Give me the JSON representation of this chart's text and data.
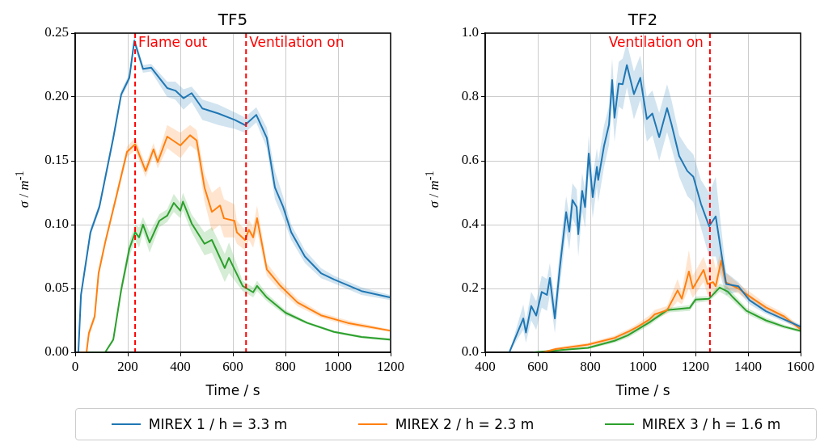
{
  "chart_data": [
    {
      "type": "line",
      "title": "TF5",
      "xlabel": "Time / s",
      "ylabel": "σ / m$^{-1}$",
      "xlim": [
        0,
        1200
      ],
      "xticks": [
        0,
        200,
        400,
        600,
        800,
        1000,
        1200
      ],
      "ylim": [
        0,
        0.25
      ],
      "yticks": [
        {
          "value": 0,
          "label": "0.00"
        },
        {
          "value": 0.05,
          "label": "0.05"
        },
        {
          "value": 0.1,
          "label": "0.10"
        },
        {
          "value": 0.15,
          "label": "0.15"
        },
        {
          "value": 0.2,
          "label": "0.20"
        },
        {
          "value": 0.25,
          "label": "0.25"
        }
      ],
      "grid": true,
      "marker": "none",
      "line_style": "solid",
      "ref_lines": [
        {
          "axis": "x",
          "value": 228,
          "label": "Flame out",
          "color": "#ff0000",
          "line_style": "dashed"
        },
        {
          "axis": "x",
          "value": 650,
          "label": "Ventilation on",
          "color": "#ff0000",
          "line_style": "dashed"
        }
      ],
      "series": [
        {
          "color": "#1f77b4",
          "x": [
            0,
            12,
            22,
            58,
            92,
            145,
            175,
            206,
            225,
            258,
            289,
            350,
            381,
            412,
            443,
            484,
            545,
            607,
            646,
            689,
            729,
            760,
            791,
            822,
            874,
            935,
            985,
            1089,
            1197
          ],
          "values": [
            0,
            0,
            0.045,
            0.094,
            0.114,
            0.168,
            0.202,
            0.215,
            0.244,
            0.222,
            0.223,
            0.207,
            0.205,
            0.199,
            0.203,
            0.191,
            0.187,
            0.182,
            0.178,
            0.186,
            0.168,
            0.129,
            0.114,
            0.094,
            0.075,
            0.062,
            0.057,
            0.048,
            0.043
          ],
          "lower": [
            0,
            0,
            0.042,
            0.091,
            0.111,
            0.165,
            0.199,
            0.212,
            0.24,
            0.219,
            0.22,
            0.2,
            0.198,
            0.19,
            0.196,
            0.182,
            0.178,
            0.175,
            0.172,
            0.18,
            0.16,
            0.12,
            0.105,
            0.088,
            0.07,
            0.058,
            0.054,
            0.045,
            0.041
          ],
          "upper": [
            0,
            0,
            0.048,
            0.097,
            0.117,
            0.171,
            0.205,
            0.218,
            0.248,
            0.225,
            0.226,
            0.212,
            0.212,
            0.206,
            0.208,
            0.198,
            0.194,
            0.188,
            0.184,
            0.192,
            0.176,
            0.142,
            0.122,
            0.1,
            0.08,
            0.066,
            0.06,
            0.051,
            0.045
          ]
        },
        {
          "color": "#ff7f0e",
          "x": [
            0,
            43,
            52,
            74,
            89,
            114,
            154,
            197,
            228,
            268,
            298,
            314,
            350,
            400,
            437,
            462,
            492,
            520,
            551,
            566,
            606,
            615,
            646,
            661,
            677,
            692,
            729,
            781,
            846,
            935,
            1037,
            1197
          ],
          "values": [
            0,
            0,
            0.015,
            0.028,
            0.062,
            0.086,
            0.12,
            0.157,
            0.163,
            0.142,
            0.159,
            0.149,
            0.169,
            0.162,
            0.17,
            0.166,
            0.129,
            0.11,
            0.115,
            0.105,
            0.103,
            0.094,
            0.088,
            0.096,
            0.09,
            0.105,
            0.065,
            0.052,
            0.039,
            0.029,
            0.023,
            0.017
          ],
          "lower": [
            0,
            0,
            0.012,
            0.025,
            0.059,
            0.083,
            0.117,
            0.153,
            0.158,
            0.137,
            0.154,
            0.144,
            0.16,
            0.152,
            0.162,
            0.158,
            0.118,
            0.095,
            0.1,
            0.09,
            0.09,
            0.085,
            0.08,
            0.088,
            0.082,
            0.095,
            0.06,
            0.048,
            0.036,
            0.027,
            0.021,
            0.016
          ],
          "upper": [
            0,
            0,
            0.018,
            0.031,
            0.065,
            0.089,
            0.123,
            0.161,
            0.168,
            0.147,
            0.164,
            0.154,
            0.178,
            0.172,
            0.178,
            0.174,
            0.14,
            0.125,
            0.13,
            0.12,
            0.116,
            0.103,
            0.096,
            0.104,
            0.098,
            0.115,
            0.07,
            0.056,
            0.042,
            0.031,
            0.025,
            0.018
          ]
        },
        {
          "color": "#2ca02c",
          "x": [
            0,
            114,
            145,
            175,
            206,
            228,
            243,
            258,
            283,
            320,
            350,
            375,
            400,
            410,
            443,
            492,
            520,
            569,
            585,
            637,
            677,
            692,
            729,
            800,
            883,
            985,
            1089,
            1197
          ],
          "values": [
            0,
            0,
            0.01,
            0.049,
            0.081,
            0.094,
            0.09,
            0.1,
            0.086,
            0.103,
            0.107,
            0.117,
            0.111,
            0.118,
            0.101,
            0.085,
            0.088,
            0.066,
            0.074,
            0.052,
            0.047,
            0.052,
            0.043,
            0.031,
            0.023,
            0.016,
            0.012,
            0.01
          ],
          "lower": [
            0,
            0,
            0.008,
            0.045,
            0.075,
            0.088,
            0.082,
            0.094,
            0.078,
            0.098,
            0.102,
            0.11,
            0.105,
            0.111,
            0.094,
            0.076,
            0.078,
            0.055,
            0.062,
            0.048,
            0.043,
            0.048,
            0.04,
            0.029,
            0.022,
            0.015,
            0.011,
            0.009
          ],
          "upper": [
            0,
            0,
            0.012,
            0.053,
            0.087,
            0.1,
            0.098,
            0.106,
            0.094,
            0.108,
            0.112,
            0.124,
            0.117,
            0.125,
            0.108,
            0.094,
            0.098,
            0.077,
            0.086,
            0.056,
            0.051,
            0.056,
            0.046,
            0.033,
            0.024,
            0.017,
            0.013,
            0.011
          ]
        }
      ]
    },
    {
      "type": "line",
      "title": "TF2",
      "xlabel": "Time / s",
      "ylabel": "σ / m$^{-1}$",
      "xlim": [
        400,
        1600
      ],
      "xticks": [
        400,
        600,
        800,
        1000,
        1200,
        1400,
        1600
      ],
      "ylim": [
        0,
        1
      ],
      "yticks": [
        {
          "value": 0,
          "label": "0.0"
        },
        {
          "value": 0.2,
          "label": "0.2"
        },
        {
          "value": 0.4,
          "label": "0.4"
        },
        {
          "value": 0.6,
          "label": "0.6"
        },
        {
          "value": 0.8,
          "label": "0.8"
        },
        {
          "value": 1,
          "label": "1.0"
        }
      ],
      "grid": true,
      "legend": "bottom",
      "marker": "none",
      "line_style": "solid",
      "ref_lines": [
        {
          "axis": "x",
          "value": 1255,
          "label": "Ventilation on",
          "color": "#ff0000",
          "line_style": "dashed"
        }
      ],
      "series": [
        {
          "name": "MIREX 1 / h = 3.3 m",
          "color": "#1f77b4",
          "x": [
            492,
            545,
            555,
            575,
            594,
            615,
            635,
            646,
            665,
            683,
            708,
            720,
            732,
            748,
            754,
            769,
            780,
            794,
            809,
            825,
            830,
            852,
            871,
            883,
            892,
            908,
            923,
            939,
            966,
            990,
            1015,
            1036,
            1062,
            1092,
            1109,
            1138,
            1169,
            1192,
            1221,
            1252,
            1277,
            1302,
            1317,
            1363,
            1406,
            1468,
            1538,
            1600
          ],
          "values": [
            0,
            0.106,
            0.062,
            0.145,
            0.115,
            0.189,
            0.18,
            0.233,
            0.106,
            0.258,
            0.439,
            0.378,
            0.477,
            0.455,
            0.37,
            0.506,
            0.455,
            0.623,
            0.486,
            0.581,
            0.54,
            0.646,
            0.713,
            0.853,
            0.735,
            0.842,
            0.84,
            0.9,
            0.809,
            0.86,
            0.731,
            0.748,
            0.674,
            0.765,
            0.714,
            0.615,
            0.568,
            0.55,
            0.465,
            0.395,
            0.426,
            0.292,
            0.214,
            0.207,
            0.163,
            0.129,
            0.103,
            0.08
          ],
          "lower": [
            0,
            0.07,
            0.03,
            0.1,
            0.07,
            0.14,
            0.13,
            0.18,
            0.06,
            0.2,
            0.38,
            0.32,
            0.42,
            0.39,
            0.3,
            0.44,
            0.39,
            0.56,
            0.42,
            0.52,
            0.47,
            0.58,
            0.65,
            0.78,
            0.66,
            0.77,
            0.76,
            0.83,
            0.73,
            0.79,
            0.66,
            0.68,
            0.6,
            0.69,
            0.64,
            0.55,
            0.49,
            0.47,
            0.39,
            0.3,
            0.3,
            0.22,
            0.18,
            0.19,
            0.15,
            0.12,
            0.095,
            0.074
          ],
          "upper": [
            0,
            0.15,
            0.1,
            0.19,
            0.16,
            0.24,
            0.23,
            0.28,
            0.16,
            0.31,
            0.49,
            0.43,
            0.53,
            0.51,
            0.43,
            0.56,
            0.51,
            0.68,
            0.55,
            0.64,
            0.6,
            0.71,
            0.77,
            0.92,
            0.8,
            0.91,
            0.92,
            0.97,
            0.88,
            0.93,
            0.8,
            0.82,
            0.75,
            0.84,
            0.79,
            0.68,
            0.64,
            0.62,
            0.54,
            0.5,
            0.55,
            0.36,
            0.25,
            0.22,
            0.18,
            0.14,
            0.11,
            0.087
          ]
        },
        {
          "name": "MIREX 2 / h = 2.3 m",
          "color": "#ff7f0e",
          "x": [
            620,
            668,
            791,
            892,
            929,
            948,
            980,
            1025,
            1045,
            1092,
            1132,
            1148,
            1175,
            1190,
            1231,
            1246,
            1267,
            1277,
            1298,
            1314,
            1363,
            1406,
            1468,
            1538,
            1600
          ],
          "values": [
            0,
            0.01,
            0.024,
            0.045,
            0.059,
            0.066,
            0.08,
            0.103,
            0.119,
            0.132,
            0.194,
            0.168,
            0.253,
            0.2,
            0.258,
            0.214,
            0.22,
            0.207,
            0.287,
            0.22,
            0.2,
            0.175,
            0.141,
            0.112,
            0.072
          ],
          "lower": [
            0,
            0.005,
            0.018,
            0.038,
            0.05,
            0.058,
            0.07,
            0.09,
            0.105,
            0.12,
            0.16,
            0.15,
            0.2,
            0.17,
            0.22,
            0.18,
            0.19,
            0.18,
            0.25,
            0.2,
            0.185,
            0.16,
            0.13,
            0.1,
            0.065
          ],
          "upper": [
            0,
            0.015,
            0.03,
            0.052,
            0.068,
            0.074,
            0.09,
            0.116,
            0.133,
            0.145,
            0.23,
            0.19,
            0.32,
            0.24,
            0.3,
            0.26,
            0.3,
            0.26,
            0.32,
            0.25,
            0.215,
            0.19,
            0.152,
            0.122,
            0.08
          ]
        },
        {
          "name": "MIREX 3 / h = 1.6 m",
          "color": "#2ca02c",
          "x": [
            584,
            791,
            892,
            942,
            1025,
            1092,
            1178,
            1200,
            1252,
            1292,
            1323,
            1343,
            1394,
            1468,
            1538,
            1600
          ],
          "values": [
            0,
            0.014,
            0.036,
            0.053,
            0.094,
            0.132,
            0.139,
            0.165,
            0.168,
            0.203,
            0.19,
            0.172,
            0.13,
            0.1,
            0.08,
            0.067
          ],
          "lower": [
            0,
            0.01,
            0.03,
            0.045,
            0.085,
            0.125,
            0.13,
            0.155,
            0.16,
            0.19,
            0.175,
            0.16,
            0.12,
            0.092,
            0.074,
            0.062
          ],
          "upper": [
            0,
            0.018,
            0.042,
            0.062,
            0.103,
            0.139,
            0.148,
            0.175,
            0.176,
            0.215,
            0.205,
            0.185,
            0.14,
            0.108,
            0.086,
            0.072
          ]
        }
      ]
    }
  ]
}
